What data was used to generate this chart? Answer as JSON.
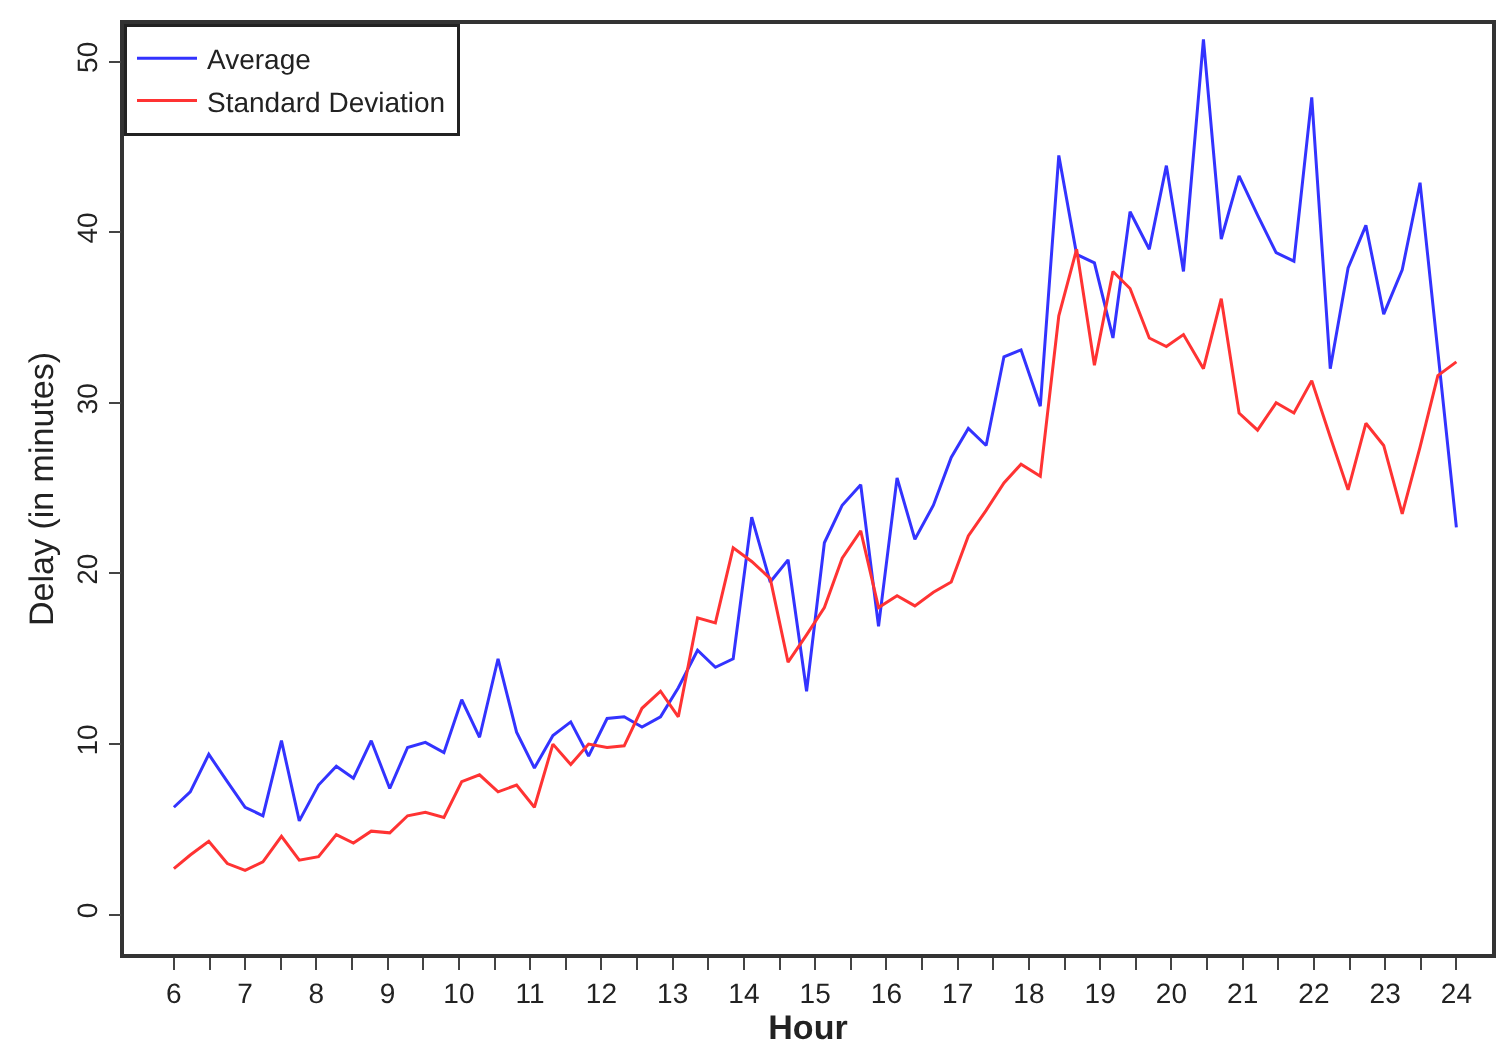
{
  "chart_data": {
    "type": "line",
    "xlabel": "Hour",
    "ylabel": "Delay (in minutes)",
    "x": [
      6.0,
      6.23,
      6.49,
      6.75,
      7.0,
      7.25,
      7.51,
      7.76,
      8.03,
      8.28,
      8.52,
      8.77,
      9.03,
      9.28,
      9.53,
      9.79,
      10.04,
      10.29,
      10.55,
      10.81,
      11.06,
      11.32,
      11.57,
      11.82,
      12.08,
      12.32,
      12.57,
      12.83,
      13.08,
      13.35,
      13.6,
      13.85,
      14.11,
      14.37,
      14.62,
      14.88,
      15.13,
      15.38,
      15.64,
      15.89,
      16.15,
      16.4,
      16.66,
      16.91,
      17.15,
      17.4,
      17.65,
      17.89,
      18.16,
      18.42,
      18.67,
      18.92,
      19.18,
      19.42,
      19.69,
      19.93,
      20.17,
      20.45,
      20.7,
      20.95,
      21.21,
      21.47,
      21.72,
      21.97,
      22.23,
      22.48,
      22.73,
      22.98,
      23.24,
      23.49,
      23.74,
      24.0
    ],
    "series": [
      {
        "name": "Average",
        "color": "#3333ff",
        "values": [
          6.3,
          7.2,
          9.4,
          7.8,
          6.3,
          5.8,
          10.2,
          5.5,
          7.6,
          8.7,
          8.0,
          10.2,
          7.4,
          9.8,
          10.1,
          9.5,
          12.6,
          10.4,
          15.0,
          10.7,
          8.6,
          10.5,
          11.3,
          9.3,
          11.5,
          11.6,
          11.0,
          11.6,
          13.3,
          15.5,
          14.5,
          15.0,
          23.3,
          19.5,
          20.8,
          13.1,
          21.8,
          24.0,
          25.2,
          16.9,
          25.6,
          22.0,
          24.0,
          26.8,
          28.5,
          27.5,
          32.7,
          33.1,
          29.8,
          44.5,
          38.7,
          38.2,
          33.8,
          41.2,
          39.0,
          43.9,
          37.7,
          51.3,
          39.6,
          43.3,
          41.0,
          38.8,
          38.3,
          47.9,
          32.0,
          37.9,
          40.4,
          35.2,
          37.8,
          42.9,
          33.0,
          22.7
        ]
      },
      {
        "name": "Standard Deviation",
        "color": "#ff3333",
        "values": [
          2.7,
          3.5,
          4.3,
          3.0,
          2.6,
          3.1,
          4.6,
          3.2,
          3.4,
          4.7,
          4.2,
          4.9,
          4.8,
          5.8,
          6.0,
          5.7,
          7.8,
          8.2,
          7.2,
          7.6,
          6.3,
          10.0,
          8.8,
          10.0,
          9.8,
          9.9,
          12.1,
          13.1,
          11.6,
          17.4,
          17.1,
          21.5,
          20.7,
          19.7,
          14.8,
          16.4,
          18.0,
          20.9,
          22.5,
          18.0,
          18.7,
          18.1,
          18.9,
          19.5,
          22.2,
          23.7,
          25.3,
          26.4,
          25.7,
          35.1,
          39.0,
          32.2,
          37.7,
          36.7,
          33.8,
          33.3,
          34.0,
          32.0,
          36.1,
          29.4,
          28.4,
          30.0,
          29.4,
          31.3,
          28.0,
          24.9,
          28.8,
          27.5,
          23.5,
          27.4,
          31.6,
          32.4
        ]
      }
    ],
    "xlim": [
      5.3,
      24.5
    ],
    "ylim": [
      -2.3,
      52.2
    ],
    "xticks": [
      6,
      {
        "value": 6.5,
        "label": null
      },
      7,
      {
        "value": 7.5,
        "label": null
      },
      8,
      {
        "value": 8.5,
        "label": null
      },
      9,
      {
        "value": 9.5,
        "label": null
      },
      10,
      {
        "value": 10.5,
        "label": null
      },
      11,
      {
        "value": 11.5,
        "label": null
      },
      12,
      {
        "value": 12.5,
        "label": null
      },
      13,
      {
        "value": 13.5,
        "label": null
      },
      14,
      {
        "value": 14.5,
        "label": null
      },
      15,
      {
        "value": 15.5,
        "label": null
      },
      16,
      {
        "value": 16.5,
        "label": null
      },
      17,
      {
        "value": 17.5,
        "label": null
      },
      18,
      {
        "value": 18.5,
        "label": null
      },
      19,
      {
        "value": 19.5,
        "label": null
      },
      20,
      {
        "value": 20.5,
        "label": null
      },
      21,
      {
        "value": 21.5,
        "label": null
      },
      22,
      {
        "value": 22.5,
        "label": null
      },
      23,
      {
        "value": 23.5,
        "label": null
      },
      24
    ],
    "yticks": [
      0,
      10,
      20,
      30,
      40,
      50
    ],
    "legend": "top left",
    "marker": "none",
    "line_style": "solid"
  }
}
